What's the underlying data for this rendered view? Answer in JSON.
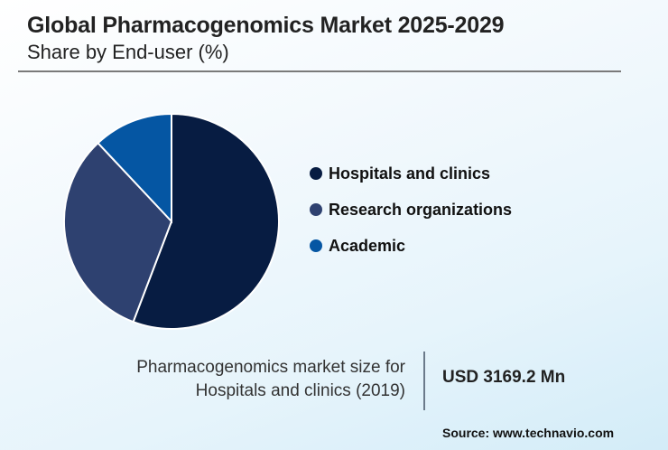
{
  "header": {
    "title": "Global Pharmacogenomics Market 2025-2029",
    "subtitle": "Share by End-user (%)"
  },
  "legend": {
    "items": [
      {
        "label": "Hospitals and clinics",
        "color": "#071c42"
      },
      {
        "label": "Research organizations",
        "color": "#2e4170"
      },
      {
        "label": "Academic",
        "color": "#0556a3"
      }
    ]
  },
  "info": {
    "label_line1": "Pharmacogenomics market size for",
    "label_line2": "Hospitals and clinics (2019)",
    "value": "USD 3169.2 Mn"
  },
  "source": "Source: www.technavio.com",
  "chart_data": {
    "type": "pie",
    "title": "Global Pharmacogenomics Market 2025-2029",
    "subtitle": "Share by End-user (%)",
    "categories": [
      "Hospitals and clinics",
      "Research organizations",
      "Academic"
    ],
    "values": [
      55.8,
      32.2,
      12.0
    ],
    "colors": [
      "#071c42",
      "#2e4170",
      "#0556a3"
    ],
    "legend_position": "right",
    "start_angle": "12 o'clock, clockwise"
  }
}
